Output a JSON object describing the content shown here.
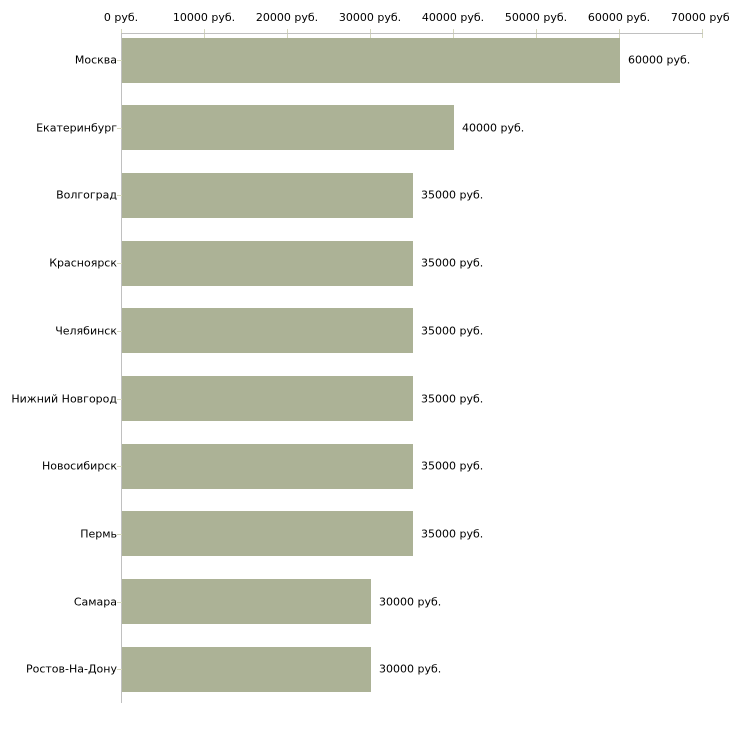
{
  "chart_data": {
    "type": "bar",
    "orientation": "horizontal",
    "title": "",
    "xlabel": "",
    "ylabel": "",
    "categories": [
      "Москва",
      "Екатеринбург",
      "Волгоград",
      "Красноярск",
      "Челябинск",
      "Нижний Новгород",
      "Новосибирск",
      "Пермь",
      "Самара",
      "Ростов-На-Дону"
    ],
    "values": [
      60000,
      40000,
      35000,
      35000,
      35000,
      35000,
      35000,
      35000,
      30000,
      30000
    ],
    "value_labels": [
      "60000 руб.",
      "40000 руб.",
      "35000 руб.",
      "35000 руб.",
      "35000 руб.",
      "35000 руб.",
      "35000 руб.",
      "35000 руб.",
      "30000 руб.",
      "30000 руб."
    ],
    "x_tick_values": [
      0,
      10000,
      20000,
      30000,
      40000,
      50000,
      60000,
      70000
    ],
    "x_tick_labels": [
      "0 руб.",
      "10000 руб.",
      "20000 руб.",
      "30000 руб.",
      "40000 руб.",
      "50000 руб.",
      "60000 руб.",
      "70000 руб."
    ],
    "xlim": [
      0,
      70000
    ],
    "grid": false,
    "legend": false,
    "colors": {
      "bar": "#acb296",
      "axis": "#c0c0c0",
      "tick": "#d4d6bc",
      "text": "#000000",
      "background": "#ffffff"
    }
  }
}
